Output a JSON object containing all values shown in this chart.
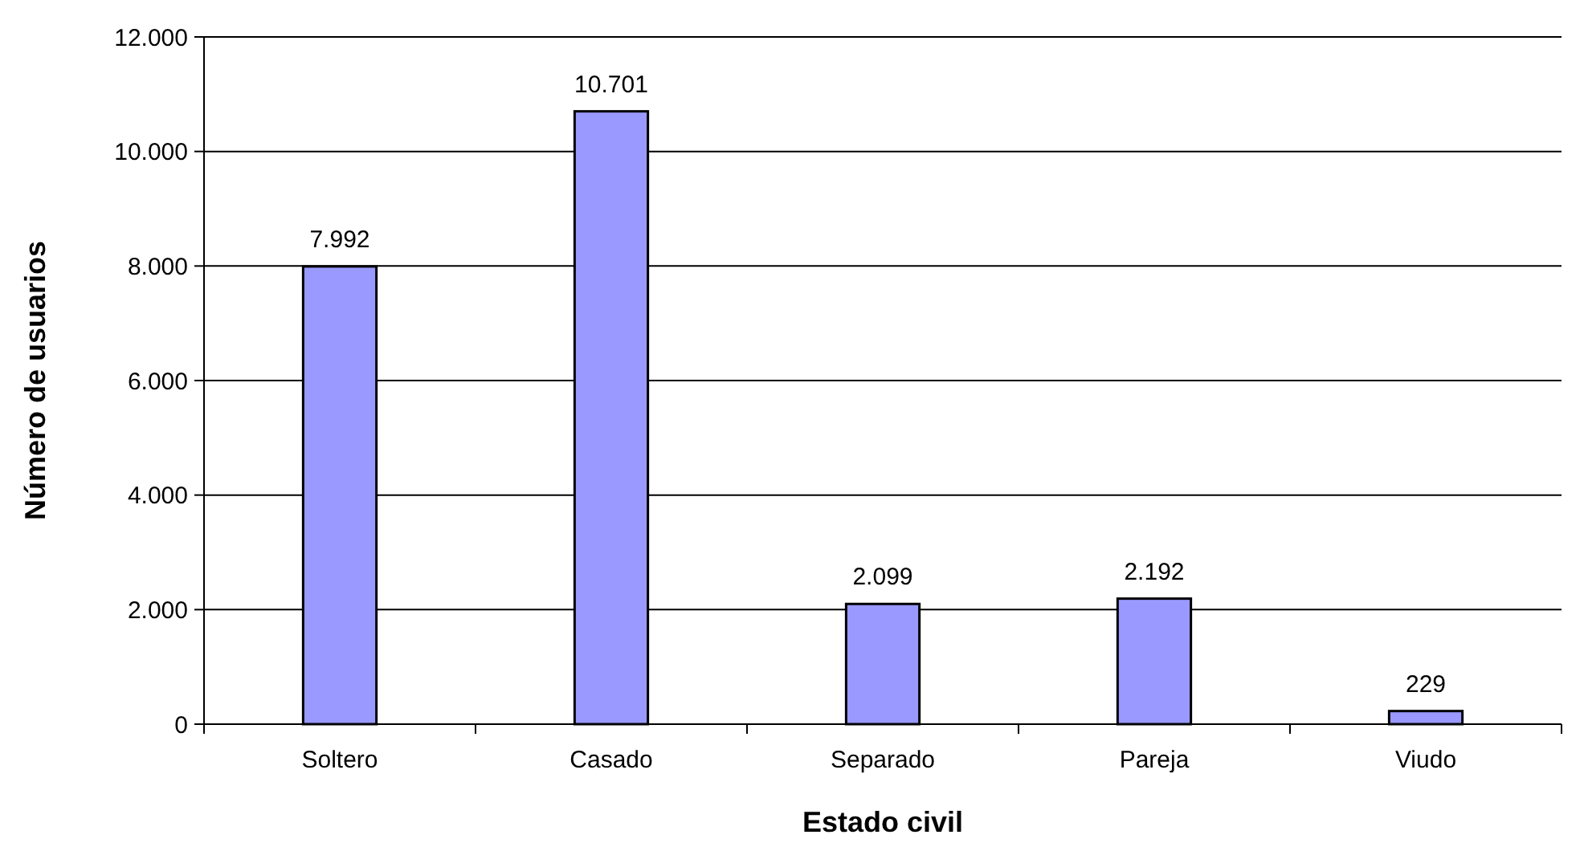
{
  "chart_data": {
    "type": "bar",
    "xlabel": "Estado civil",
    "ylabel": "Número de usuarios",
    "categories": [
      "Soltero",
      "Casado",
      "Separado",
      "Pareja",
      "Viudo"
    ],
    "values": [
      7992,
      10701,
      2099,
      2192,
      229
    ],
    "value_labels": [
      "7.992",
      "10.701",
      "2.099",
      "2.192",
      "229"
    ],
    "color": "#9999ff",
    "ylim": [
      0,
      12000
    ],
    "yticks": [
      0,
      {
        "value": 2000,
        "label": "2.000"
      },
      {
        "value": 4000,
        "label": "4.000"
      },
      {
        "value": 6000,
        "label": "6.000"
      },
      {
        "value": 8000,
        "label": "8.000"
      },
      {
        "value": 10000,
        "label": "10.000"
      },
      {
        "value": 12000,
        "label": "12.000"
      }
    ],
    "grid": "y"
  }
}
